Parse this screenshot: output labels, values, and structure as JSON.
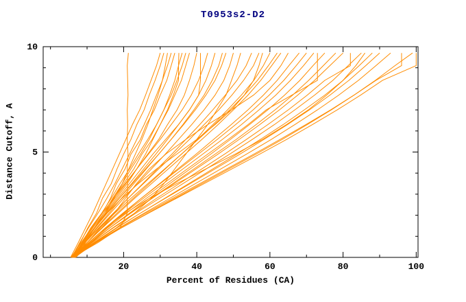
{
  "chart_data": {
    "type": "line",
    "title": "T0953s2-D2",
    "xlabel": "Percent of Residues (CA)",
    "ylabel": "Distance Cutoff, A",
    "xlim": [
      -2,
      100.5
    ],
    "ylim": [
      0,
      10
    ],
    "x_ticks": [
      20,
      40,
      60,
      80,
      100
    ],
    "x_minor_ticks": [
      0,
      10,
      30,
      50,
      70,
      90
    ],
    "y_ticks": [
      0,
      5,
      10
    ],
    "y_minor_ticks": [
      1,
      2,
      3,
      4,
      6,
      7,
      8,
      9
    ],
    "line_color": "#ff8c00",
    "background": "#ffffff",
    "frame_color": "#000000",
    "y_levels": [
      0,
      0.7,
      1.4,
      2.1,
      2.8,
      3.5,
      4.2,
      4.9,
      5.6,
      6.3,
      7.0,
      7.7,
      8.4,
      9.1,
      9.7
    ],
    "series": [
      [
        6.0,
        13.0,
        19.0,
        21.0,
        21.0,
        21.1,
        21.0,
        21.2,
        21.0,
        21.1,
        21.0,
        21.2,
        21.1,
        21.0,
        21.3
      ],
      [
        5.5,
        7.6,
        9.6,
        11.6,
        13.4,
        15.2,
        17.0,
        18.8,
        20.6,
        22.4,
        24.4,
        26.0,
        27.5,
        29.0,
        30.0
      ],
      [
        6.0,
        8.2,
        10.2,
        12.6,
        14.2,
        16.6,
        18.2,
        20.0,
        22.0,
        23.6,
        25.6,
        27.0,
        28.6,
        30.0,
        31.0
      ],
      [
        6.5,
        9.0,
        12.0,
        15.0,
        17.4,
        19.6,
        21.4,
        23.2,
        25.0,
        26.6,
        28.0,
        29.4,
        30.6,
        31.4,
        32.0
      ],
      [
        5.8,
        8.0,
        10.4,
        13.0,
        15.4,
        17.6,
        19.6,
        21.6,
        23.6,
        25.6,
        27.4,
        29.0,
        30.6,
        32.0,
        33.0
      ],
      [
        6.2,
        8.6,
        11.4,
        14.2,
        16.4,
        18.0,
        20.4,
        22.0,
        24.6,
        26.2,
        28.4,
        30.0,
        31.8,
        33.0,
        34.0
      ],
      [
        6.2,
        9.0,
        12.0,
        15.0,
        18.0,
        21.0,
        23.6,
        26.0,
        28.0,
        30.0,
        32.0,
        33.6,
        35.0,
        35.0,
        35.1
      ],
      [
        7.0,
        9.6,
        12.0,
        14.6,
        17.0,
        19.6,
        22.0,
        24.6,
        27.0,
        29.0,
        31.0,
        32.6,
        34.0,
        35.0,
        36.0
      ],
      [
        6.0,
        8.6,
        11.0,
        14.0,
        16.6,
        19.0,
        21.6,
        24.0,
        26.6,
        29.0,
        31.0,
        33.0,
        34.6,
        36.0,
        37.0
      ],
      [
        6.8,
        9.2,
        12.2,
        15.0,
        17.2,
        20.0,
        22.8,
        25.0,
        27.8,
        30.0,
        32.2,
        34.0,
        35.8,
        37.0,
        38.0
      ],
      [
        6.0,
        8.8,
        11.6,
        14.6,
        17.6,
        20.6,
        23.6,
        26.6,
        29.6,
        32.0,
        34.6,
        36.6,
        38.0,
        39.2,
        40.0
      ],
      [
        6.4,
        9.0,
        12.0,
        15.2,
        18.4,
        21.6,
        24.8,
        28.0,
        31.5,
        35.0,
        38.0,
        40.5,
        41.0,
        41.0,
        41.0
      ],
      [
        5.6,
        8.4,
        11.2,
        14.2,
        17.2,
        20.4,
        23.6,
        26.8,
        30.0,
        33.0,
        36.0,
        38.5,
        40.5,
        42.0,
        43.0
      ],
      [
        6.0,
        9.0,
        12.2,
        15.5,
        18.8,
        22.2,
        25.5,
        28.8,
        32.0,
        35.0,
        38.0,
        40.5,
        42.5,
        44.0,
        45.0
      ],
      [
        6.6,
        9.4,
        12.6,
        16.0,
        19.4,
        22.8,
        26.2,
        29.6,
        33.0,
        36.2,
        39.2,
        42.0,
        44.2,
        46.0,
        47.0
      ],
      [
        5.9,
        8.9,
        12.0,
        15.4,
        18.8,
        22.4,
        26.0,
        29.6,
        33.0,
        36.4,
        39.6,
        42.5,
        45.0,
        46.8,
        48.0
      ],
      [
        6.3,
        9.4,
        12.8,
        16.4,
        20.0,
        23.8,
        27.6,
        31.4,
        35.0,
        38.6,
        42.0,
        45.0,
        47.4,
        49.0,
        50.0
      ],
      [
        6.0,
        12.0,
        18.0,
        23.0,
        27.5,
        31.0,
        34.0,
        37.0,
        40.0,
        43.0,
        45.5,
        48.0,
        49.5,
        51.0,
        52.0
      ],
      [
        6.8,
        10.0,
        13.6,
        17.4,
        21.2,
        25.2,
        29.2,
        33.2,
        37.0,
        40.8,
        44.4,
        47.8,
        51.0,
        53.5,
        55.0
      ],
      [
        6.1,
        9.5,
        13.2,
        17.2,
        21.2,
        25.4,
        29.6,
        33.8,
        38.0,
        42.0,
        46.0,
        49.6,
        52.8,
        55.5,
        57.0
      ],
      [
        6.4,
        9.0,
        12.0,
        15.5,
        19.5,
        24.0,
        29.0,
        34.5,
        40.0,
        45.0,
        49.5,
        53.0,
        55.5,
        57.0,
        58.0
      ],
      [
        6.5,
        10.0,
        14.0,
        18.2,
        22.6,
        27.0,
        31.4,
        35.8,
        40.2,
        44.4,
        48.4,
        52.2,
        55.6,
        58.2,
        60.0
      ],
      [
        5.7,
        9.4,
        13.4,
        17.6,
        22.0,
        26.6,
        31.2,
        35.8,
        40.4,
        44.8,
        49.0,
        53.0,
        56.6,
        59.6,
        62.0
      ],
      [
        6.2,
        10.0,
        14.2,
        18.6,
        23.0,
        27.6,
        32.2,
        36.8,
        41.4,
        45.8,
        50.0,
        54.0,
        57.5,
        60.5,
        63.0
      ],
      [
        6.0,
        10.0,
        14.0,
        17.5,
        20.5,
        23.5,
        27.0,
        31.5,
        37.0,
        43.0,
        49.5,
        55.5,
        60.0,
        63.0,
        65.0
      ],
      [
        6.9,
        11.0,
        15.4,
        20.0,
        24.8,
        29.8,
        34.8,
        39.8,
        44.6,
        49.4,
        54.0,
        58.2,
        62.0,
        65.2,
        68.0
      ],
      [
        6.3,
        10.4,
        15.0,
        19.8,
        24.8,
        30.0,
        35.2,
        40.4,
        45.6,
        50.6,
        55.4,
        59.8,
        63.8,
        67.2,
        70.0
      ],
      [
        6.0,
        10.4,
        15.2,
        20.2,
        25.4,
        30.8,
        36.2,
        41.6,
        47.0,
        52.2,
        57.0,
        61.6,
        65.6,
        69.2,
        72.0
      ],
      [
        6.5,
        10.8,
        15.6,
        20.8,
        26.2,
        31.8,
        37.4,
        43.0,
        48.6,
        54.0,
        59.0,
        66.0,
        73.0,
        73.0,
        73.0
      ],
      [
        6.6,
        11.2,
        16.2,
        21.6,
        27.0,
        32.6,
        38.2,
        43.8,
        49.2,
        54.4,
        59.4,
        64.0,
        68.2,
        71.8,
        75.0
      ],
      [
        6.2,
        11.0,
        16.2,
        21.8,
        27.6,
        33.4,
        39.2,
        45.0,
        50.8,
        56.2,
        61.4,
        66.2,
        70.6,
        74.6,
        78.0
      ],
      [
        5.8,
        10.8,
        16.2,
        22.0,
        27.8,
        33.8,
        39.8,
        45.8,
        51.6,
        57.2,
        62.6,
        67.6,
        72.2,
        76.4,
        80.0
      ],
      [
        6.4,
        11.4,
        17.0,
        23.0,
        29.0,
        35.2,
        41.4,
        47.6,
        53.6,
        59.4,
        65.0,
        70.2,
        75.0,
        82.0,
        82.0
      ],
      [
        6.0,
        11.4,
        17.2,
        23.4,
        29.8,
        36.2,
        42.6,
        49.0,
        55.2,
        61.2,
        66.8,
        72.2,
        77.2,
        81.4,
        85.0
      ],
      [
        6.6,
        10.5,
        15.0,
        20.5,
        27.0,
        34.5,
        42.5,
        50.5,
        58.0,
        64.5,
        70.5,
        75.5,
        80.0,
        83.5,
        86.0
      ],
      [
        6.7,
        12.2,
        18.2,
        24.6,
        31.2,
        37.8,
        44.4,
        51.0,
        57.4,
        63.6,
        69.4,
        75.0,
        80.0,
        84.4,
        88.0
      ],
      [
        6.1,
        11.8,
        18.0,
        24.6,
        31.4,
        38.2,
        45.0,
        51.8,
        58.4,
        64.8,
        70.8,
        76.4,
        81.6,
        86.2,
        90.0
      ],
      [
        6.5,
        12.4,
        18.8,
        25.6,
        32.6,
        39.6,
        46.6,
        53.6,
        60.4,
        66.8,
        73.0,
        78.8,
        84.2,
        89.0,
        93.0
      ],
      [
        6.0,
        12.2,
        19.0,
        26.0,
        33.4,
        40.8,
        48.2,
        55.6,
        62.8,
        69.8,
        76.6,
        83.0,
        89.0,
        96.0,
        96.0
      ],
      [
        6.3,
        12.6,
        19.4,
        26.6,
        34.0,
        41.4,
        48.8,
        56.2,
        63.4,
        70.2,
        76.8,
        83.0,
        88.8,
        94.2,
        99.0
      ],
      [
        5.9,
        12.4,
        19.4,
        26.8,
        34.4,
        42.0,
        49.6,
        57.2,
        64.6,
        71.6,
        78.4,
        84.8,
        90.8,
        100.0,
        100.0
      ]
    ]
  }
}
